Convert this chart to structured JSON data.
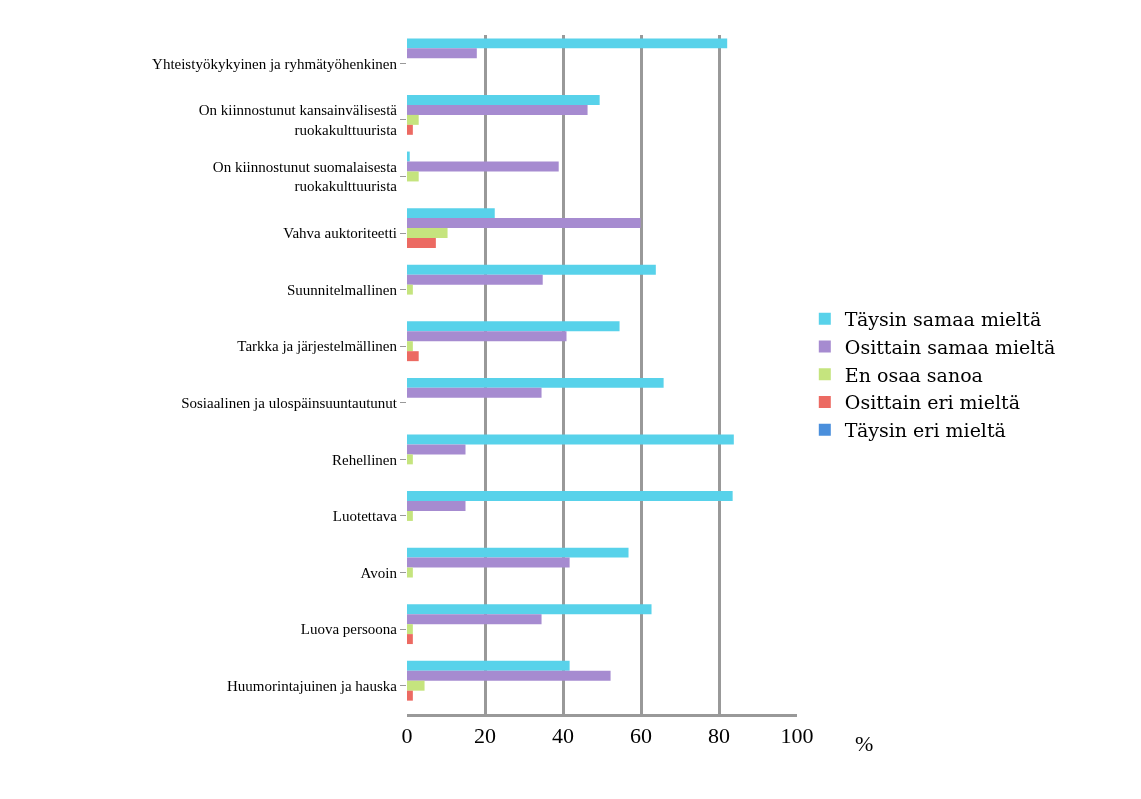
{
  "chart_data": {
    "type": "bar",
    "orientation": "horizontal",
    "xlabel": "%",
    "categories": [
      "Yhteistyökykyinen ja ryhmätyöhenkinen",
      "On kiinnostunut kansainvälisestä\nruokakulttuurista",
      "On kiinnostunut suomalaisesta\nruokakulttuurista",
      "Vahva auktoriteetti",
      "Suunnitelmallinen",
      "Tarkka ja järjestelmällinen",
      "Sosiaalinen ja ulospäinsuuntautunut",
      "Rehellinen",
      "Luotettava",
      "Avoin",
      "Luova persoona",
      "Huumorintajuinen ja hauska"
    ],
    "series": [
      {
        "name": "Täysin samaa mieltä",
        "color": "#58d2ea",
        "values": [
          82.1,
          49.4,
          0.7,
          22.5,
          63.8,
          54.5,
          65.8,
          83.8,
          83.5,
          56.8,
          62.7,
          41.7
        ]
      },
      {
        "name": "Osittain samaa mieltä",
        "color": "#a68bd0",
        "values": [
          17.9,
          46.3,
          38.9,
          59.9,
          34.8,
          40.9,
          34.5,
          15.0,
          15.0,
          41.7,
          34.5,
          52.2
        ]
      },
      {
        "name": "En osaa sanoa",
        "color": "#c5e47e",
        "values": [
          0,
          3.0,
          3.0,
          10.4,
          1.5,
          1.5,
          0,
          1.5,
          1.5,
          1.5,
          1.5,
          4.5
        ]
      },
      {
        "name": "Osittain eri mieltä",
        "color": "#ec6a62",
        "values": [
          0,
          1.5,
          0,
          7.4,
          0,
          3.0,
          0,
          0,
          0,
          0,
          1.5,
          1.5
        ]
      },
      {
        "name": "Täysin eri mieltä",
        "color": "#4a8fdc",
        "values": [
          0,
          0,
          0,
          0,
          0,
          0,
          0,
          0,
          0,
          0,
          0,
          0
        ]
      }
    ],
    "xlim": [
      0,
      100
    ],
    "xticks": [
      0,
      20,
      40,
      60,
      80,
      100
    ],
    "grid": "x",
    "legend": "right"
  }
}
